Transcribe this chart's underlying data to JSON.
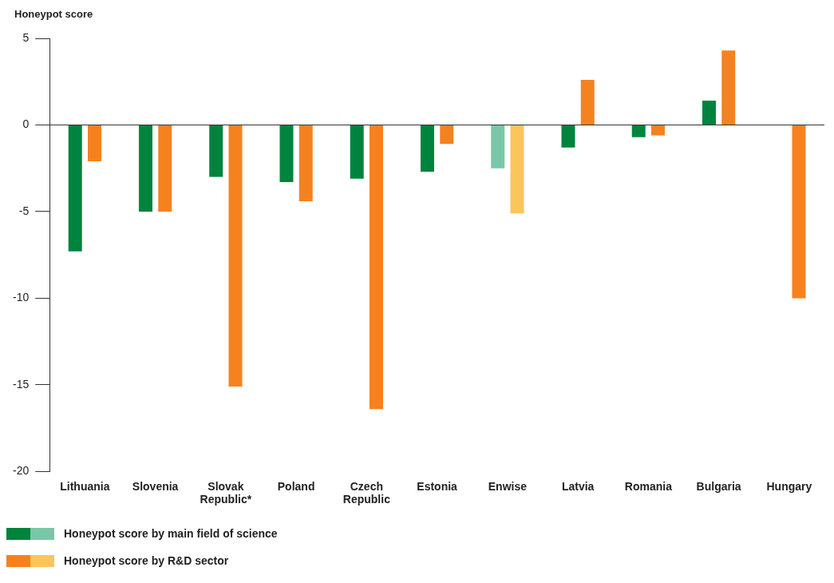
{
  "chart_data": {
    "type": "bar",
    "ylabel": "Honeypot score",
    "categories": [
      "Lithuania",
      "Slovenia",
      "Slovak Republic*",
      "Poland",
      "Czech Republic",
      "Estonia",
      "Enwise",
      "Latvia",
      "Romania",
      "Bulgaria",
      "Hungary"
    ],
    "series": [
      {
        "name": "Honeypot score by main field of science",
        "color": "#00843d",
        "colors": [
          "#00843d",
          "#00843d",
          "#00843d",
          "#00843d",
          "#00843d",
          "#00843d",
          "#7ac7a8",
          "#00843d",
          "#00843d",
          "#00843d",
          "#00843d"
        ],
        "values": [
          -7.3,
          -5,
          -3.0,
          -3.3,
          -3.1,
          -2.7,
          -2.5,
          -1.3,
          -0.7,
          1.4,
          null
        ]
      },
      {
        "name": "Honeypot score by R&D sector",
        "color": "#f5821f",
        "colors": [
          "#f5821f",
          "#f5821f",
          "#f5821f",
          "#f5821f",
          "#f5821f",
          "#f5821f",
          "#fcc55c",
          "#f5821f",
          "#f5821f",
          "#f5821f",
          "#f5821f"
        ],
        "values": [
          -2.1,
          -5,
          -15.1,
          -4.4,
          -16.4,
          -1.1,
          -5.1,
          2.6,
          -0.6,
          4.3,
          -10
        ]
      }
    ],
    "ylim": [
      -20,
      5
    ],
    "yticks": [
      -20,
      -15,
      -10,
      -5,
      0,
      5
    ],
    "grid": false,
    "ref_lines": [
      {
        "axis": "y",
        "value": 0,
        "color": "#333333"
      }
    ],
    "legend": "bottom"
  }
}
